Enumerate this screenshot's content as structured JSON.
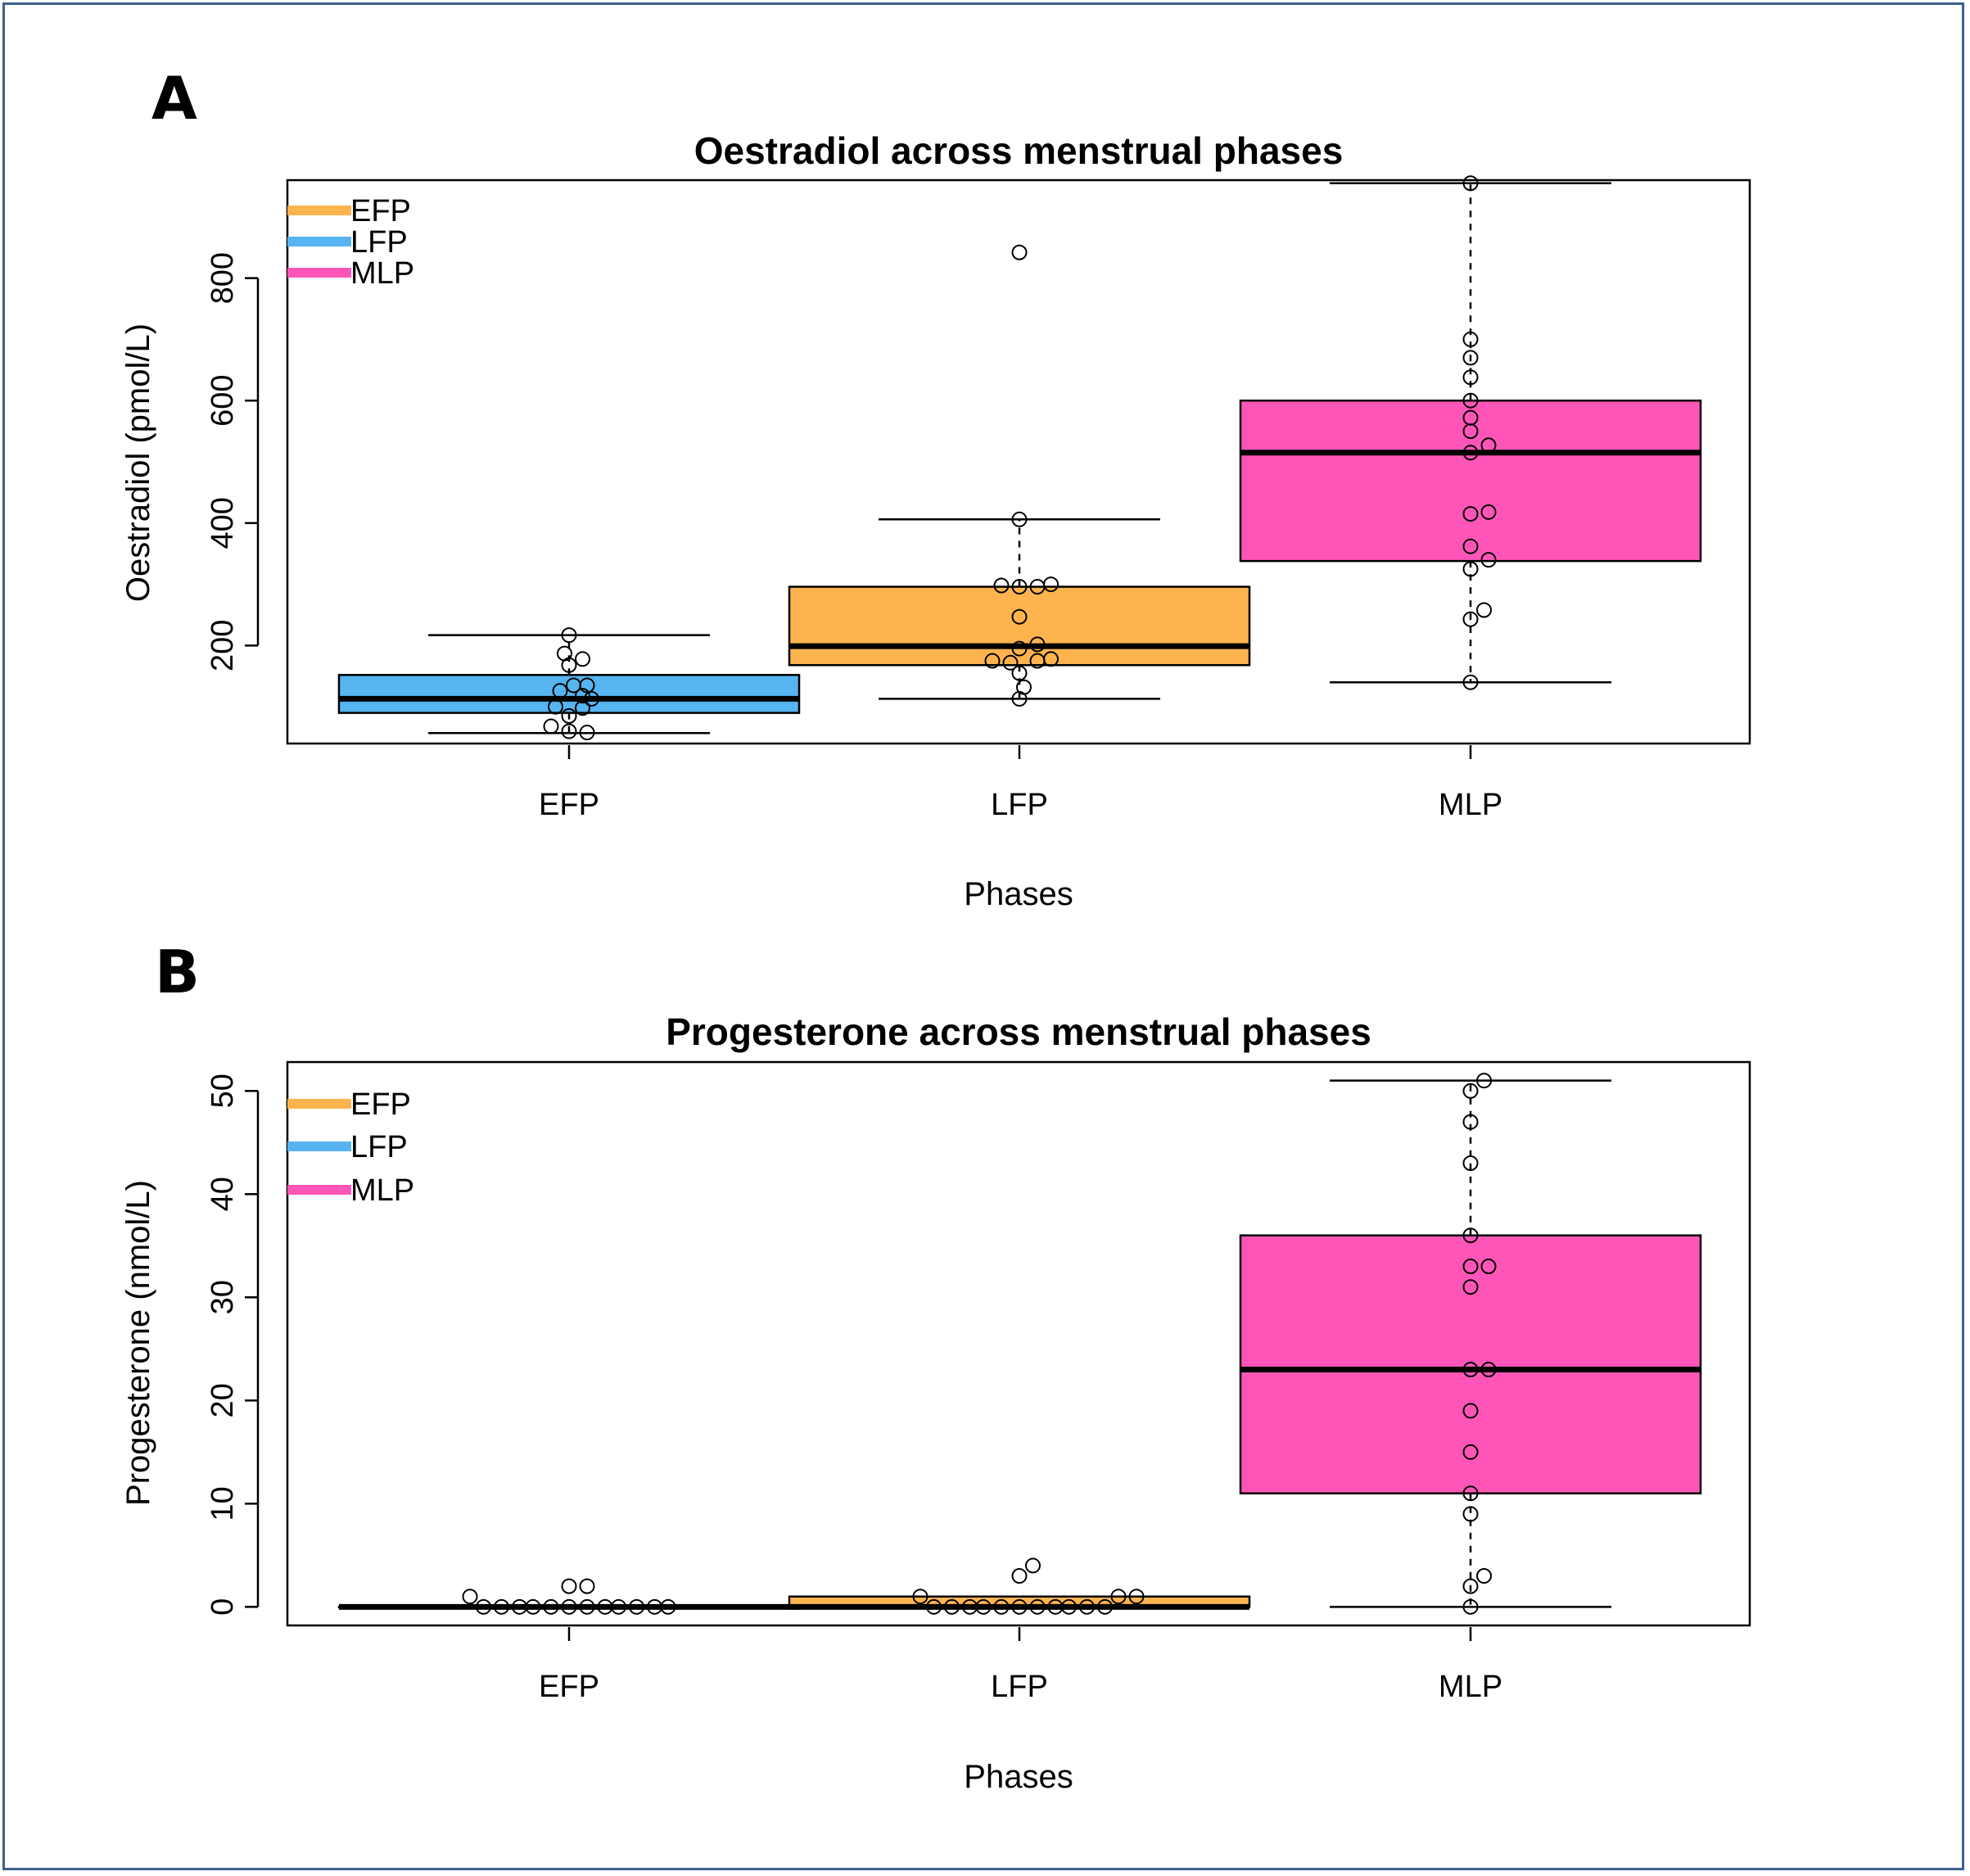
{
  "colors": {
    "EFP": "#fdb44e",
    "LFP": "#56b4f0",
    "MLP": "#ff55b8"
  },
  "chart_data": [
    {
      "panel": "A",
      "type": "box",
      "title": "Oestradiol across menstrual phases",
      "xlabel": "Phases",
      "ylabel": "Oestradiol (pmol/L)",
      "categories": [
        "EFP",
        "LFP",
        "MLP"
      ],
      "ylim": [
        40,
        960
      ],
      "yticks": [
        200,
        400,
        600,
        800
      ],
      "legend": [
        "EFP",
        "LFP",
        "MLP"
      ],
      "legend_colors": [
        "#fdb44e",
        "#56b4f0",
        "#ff55b8"
      ],
      "box_colors": [
        "#56b4f0",
        "#fdb44e",
        "#ff55b8"
      ],
      "boxes": [
        {
          "whisker_low": 57,
          "q1": 90,
          "median": 113,
          "q3": 152,
          "whisker_high": 217
        },
        {
          "whisker_low": 113,
          "q1": 168,
          "median": 199,
          "q3": 296,
          "whisker_high": 406
        },
        {
          "whisker_low": 140,
          "q1": 338,
          "median": 515,
          "q3": 600,
          "whisker_high": 955
        }
      ],
      "points": [
        [
          [
            0,
            217
          ],
          [
            -0.01,
            187
          ],
          [
            0.03,
            178
          ],
          [
            0,
            168
          ],
          [
            0.01,
            135
          ],
          [
            0.04,
            135
          ],
          [
            -0.02,
            126
          ],
          [
            0.03,
            118
          ],
          [
            0.05,
            113
          ],
          [
            -0.03,
            100
          ],
          [
            0.03,
            98
          ],
          [
            0,
            85
          ],
          [
            -0.04,
            68
          ],
          [
            0,
            60
          ],
          [
            0.04,
            58
          ]
        ],
        [
          [
            0,
            842
          ],
          [
            0,
            406
          ],
          [
            -0.04,
            298
          ],
          [
            0,
            296
          ],
          [
            0.04,
            296
          ],
          [
            0.07,
            300
          ],
          [
            0,
            247
          ],
          [
            0,
            195
          ],
          [
            0.04,
            202
          ],
          [
            -0.06,
            175
          ],
          [
            -0.02,
            172
          ],
          [
            0.04,
            175
          ],
          [
            0.07,
            178
          ],
          [
            0,
            155
          ],
          [
            0.01,
            132
          ],
          [
            0,
            113
          ]
        ],
        [
          [
            0,
            955
          ],
          [
            0,
            700
          ],
          [
            0,
            670
          ],
          [
            0,
            638
          ],
          [
            0,
            600
          ],
          [
            0,
            572
          ],
          [
            0,
            550
          ],
          [
            0.04,
            527
          ],
          [
            0,
            515
          ],
          [
            0,
            415
          ],
          [
            0.04,
            418
          ],
          [
            0,
            362
          ],
          [
            0.04,
            340
          ],
          [
            0,
            325
          ],
          [
            0.03,
            258
          ],
          [
            0,
            243
          ],
          [
            0,
            140
          ]
        ]
      ]
    },
    {
      "panel": "B",
      "type": "box",
      "title": "Progesterone across menstrual phases",
      "xlabel": "Phases",
      "ylabel": "Progesterone (nmol/L)",
      "categories": [
        "EFP",
        "LFP",
        "MLP"
      ],
      "ylim": [
        -1.8,
        52.8
      ],
      "yticks": [
        0,
        10,
        20,
        30,
        40,
        50
      ],
      "legend": [
        "EFP",
        "LFP",
        "MLP"
      ],
      "legend_colors": [
        "#fdb44e",
        "#56b4f0",
        "#ff55b8"
      ],
      "box_colors": [
        "#56b4f0",
        "#fdb44e",
        "#ff55b8"
      ],
      "boxes": [
        {
          "whisker_low": 0,
          "q1": 0,
          "median": 0,
          "q3": 0,
          "whisker_high": 0
        },
        {
          "whisker_low": 0,
          "q1": 0,
          "median": 0,
          "q3": 1,
          "whisker_high": 1
        },
        {
          "whisker_low": 0,
          "q1": 11,
          "median": 23,
          "q3": 36,
          "whisker_high": 51
        }
      ],
      "points": [
        [
          [
            -0.22,
            1
          ],
          [
            -0.19,
            0
          ],
          [
            -0.15,
            0
          ],
          [
            -0.11,
            0
          ],
          [
            -0.08,
            0
          ],
          [
            -0.04,
            0
          ],
          [
            0,
            0
          ],
          [
            0,
            2
          ],
          [
            0.04,
            2
          ],
          [
            0.04,
            0
          ],
          [
            0.08,
            0
          ],
          [
            0.11,
            0
          ],
          [
            0.15,
            0
          ],
          [
            0.19,
            0
          ],
          [
            0.22,
            0
          ]
        ],
        [
          [
            -0.22,
            1
          ],
          [
            -0.19,
            0
          ],
          [
            -0.15,
            0
          ],
          [
            -0.11,
            0
          ],
          [
            -0.08,
            0
          ],
          [
            -0.04,
            0
          ],
          [
            0,
            0
          ],
          [
            0,
            3
          ],
          [
            0.03,
            4
          ],
          [
            0.04,
            0
          ],
          [
            0.08,
            0
          ],
          [
            0.11,
            0
          ],
          [
            0.15,
            0
          ],
          [
            0.19,
            0
          ],
          [
            0.22,
            1
          ],
          [
            0.26,
            1
          ]
        ],
        [
          [
            0.03,
            51
          ],
          [
            0,
            50
          ],
          [
            0,
            47
          ],
          [
            0,
            43
          ],
          [
            0,
            36
          ],
          [
            0,
            33
          ],
          [
            0.04,
            33
          ],
          [
            0,
            31
          ],
          [
            0,
            23
          ],
          [
            0.04,
            23
          ],
          [
            0,
            19
          ],
          [
            0,
            15
          ],
          [
            0,
            11
          ],
          [
            0,
            9
          ],
          [
            0,
            2
          ],
          [
            0.03,
            3
          ],
          [
            0,
            0
          ]
        ]
      ]
    }
  ]
}
